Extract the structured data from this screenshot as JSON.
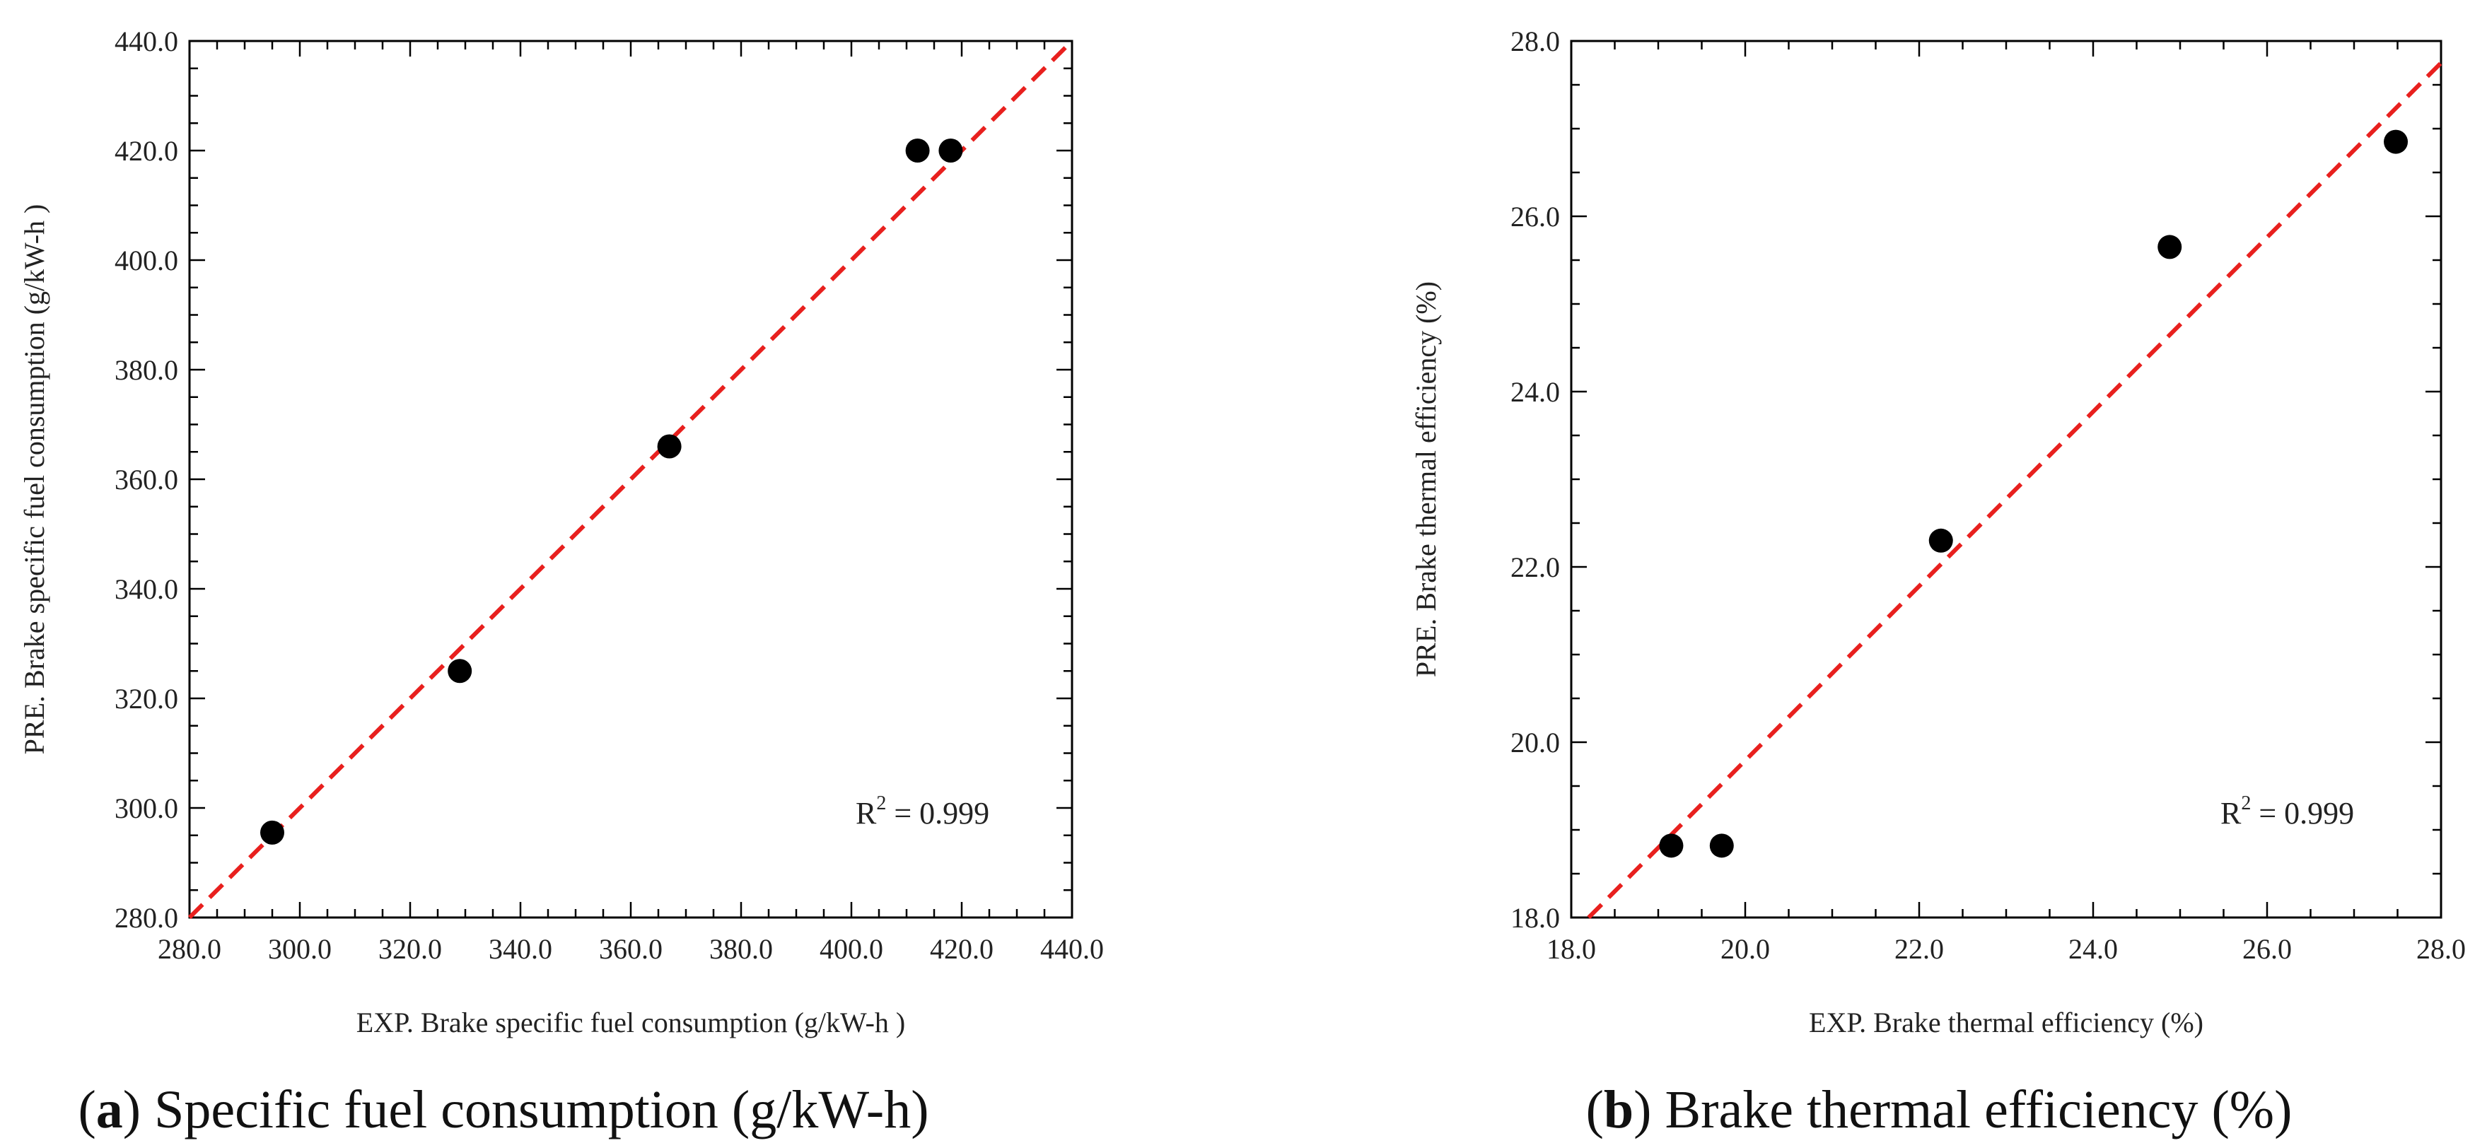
{
  "chart_data": [
    {
      "type": "scatter",
      "panel_letter": "a",
      "caption": "Specific fuel consumption (g/kW-h)",
      "xlabel": "EXP. Brake specific fuel consumption (g/kW-h )",
      "ylabel": "PRE. Brake specific fuel consumption (g/kW-h )",
      "xlim": [
        280,
        440
      ],
      "ylim": [
        280,
        440
      ],
      "xticks": [
        "280.0",
        "300.0",
        "320.0",
        "340.0",
        "360.0",
        "380.0",
        "400.0",
        "420.0",
        "440.0"
      ],
      "yticks": [
        "280.0",
        "300.0",
        "320.0",
        "340.0",
        "360.0",
        "380.0",
        "400.0",
        "420.0",
        "440.0"
      ],
      "points": [
        {
          "x": 295,
          "y": 295.5
        },
        {
          "x": 329,
          "y": 325
        },
        {
          "x": 367,
          "y": 366
        },
        {
          "x": 412,
          "y": 420
        },
        {
          "x": 418,
          "y": 420
        }
      ],
      "fit_line": {
        "x": [
          280,
          440
        ],
        "y": [
          280,
          440
        ],
        "color": "#e8201e",
        "style": "dashed"
      },
      "annotation": {
        "prefix": "R",
        "sup": "2",
        "rest": " = 0.999"
      },
      "grid": false
    },
    {
      "type": "scatter",
      "panel_letter": "b",
      "caption": "Brake thermal efficiency (%)",
      "xlabel": "EXP. Brake thermal efficiency (%)",
      "ylabel": "PRE. Brake thermal efficiency (%)",
      "xlim": [
        18,
        28
      ],
      "ylim": [
        18,
        28
      ],
      "xticks": [
        "18.0",
        "20.0",
        "22.0",
        "24.0",
        "26.0",
        "28.0"
      ],
      "yticks": [
        "18.0",
        "20.0",
        "22.0",
        "24.0",
        "26.0",
        "28.0"
      ],
      "points": [
        {
          "x": 19.15,
          "y": 18.82
        },
        {
          "x": 19.73,
          "y": 18.82
        },
        {
          "x": 22.25,
          "y": 22.3
        },
        {
          "x": 24.88,
          "y": 25.65
        },
        {
          "x": 27.48,
          "y": 26.85
        }
      ],
      "fit_line": {
        "x": [
          18.2,
          28.0
        ],
        "y": [
          18.0,
          27.75
        ],
        "color": "#e8201e",
        "style": "dashed"
      },
      "annotation": {
        "prefix": "R",
        "sup": "2",
        "rest": " = 0.999"
      },
      "grid": false
    }
  ],
  "colors": {
    "marker": "#000000",
    "fit": "#e8201e",
    "axis": "#000000"
  }
}
